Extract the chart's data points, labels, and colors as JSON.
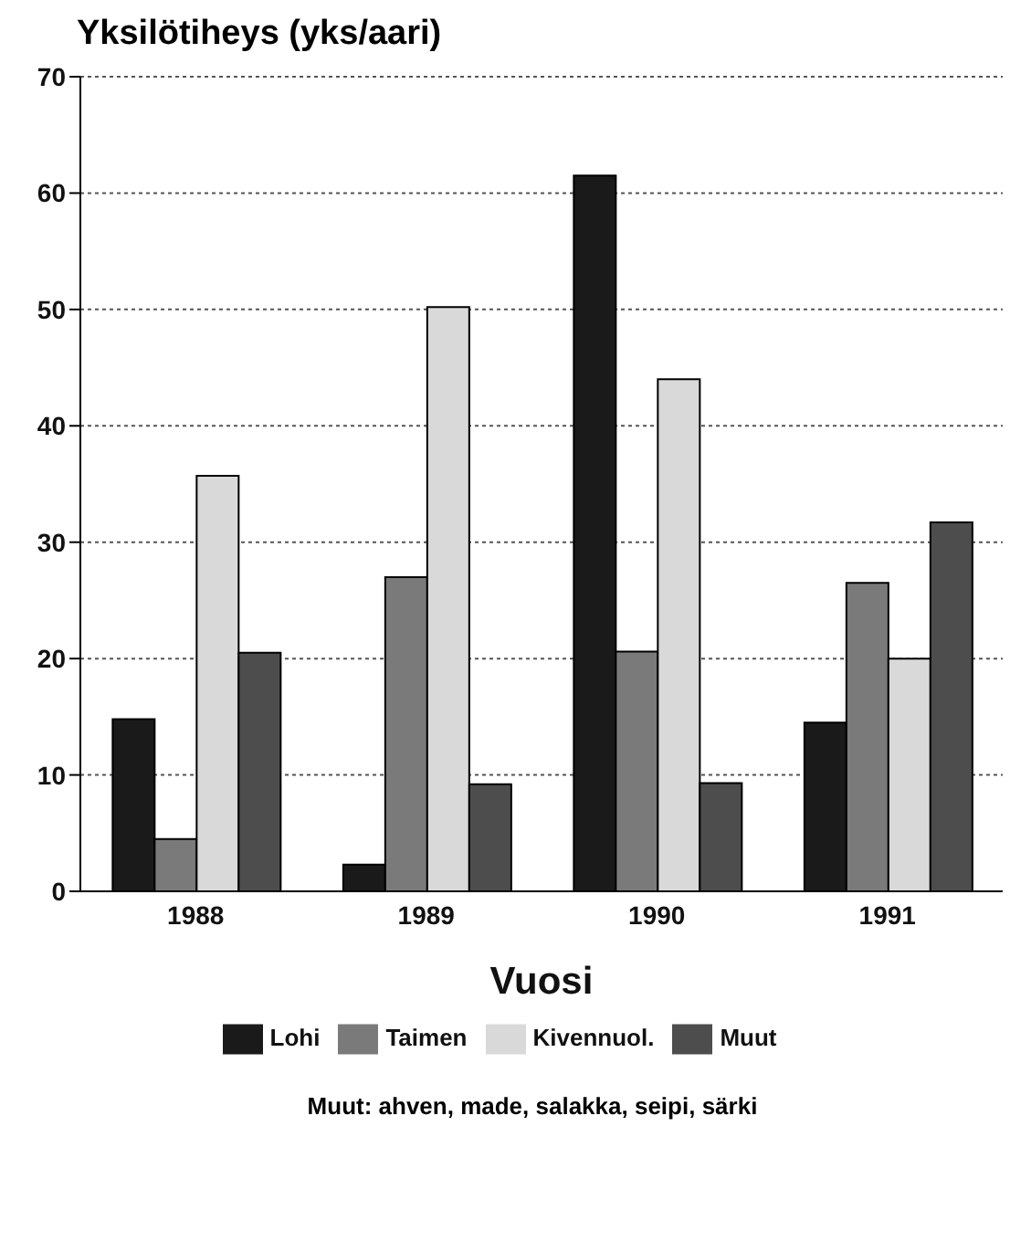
{
  "chart_data": {
    "type": "bar",
    "ylabel": "Yksilötiheys (yks/aari)",
    "xlabel": "Vuosi",
    "categories": [
      "1988",
      "1989",
      "1990",
      "1991"
    ],
    "series": [
      {
        "name": "Lohi",
        "color": "#1a1a1a",
        "values": [
          14.8,
          2.3,
          61.5,
          14.5
        ]
      },
      {
        "name": "Taimen",
        "color": "#7a7a7a",
        "values": [
          4.5,
          27,
          20.6,
          26.5
        ]
      },
      {
        "name": "Kivennuol.",
        "color": "#d9d9d9",
        "values": [
          35.7,
          50.2,
          44,
          20
        ]
      },
      {
        "name": "Muut",
        "color": "#4d4d4d",
        "values": [
          20.5,
          9.2,
          9.3,
          31.7
        ]
      }
    ],
    "ylim": [
      0,
      70
    ],
    "yticks": [
      0,
      10,
      20,
      30,
      40,
      50,
      60,
      70
    ],
    "grid": "y",
    "legend": "bottom",
    "annotations": [
      "Muut: ahven, made, salakka, seipi, särki"
    ]
  }
}
